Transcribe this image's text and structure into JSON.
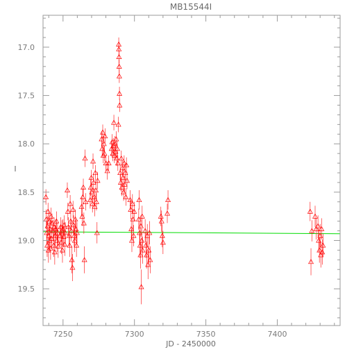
{
  "chart_data": {
    "type": "scatter",
    "title": "MB15544I",
    "xlabel": "JD - 2450000",
    "ylabel": "I",
    "xlim": [
      7236,
      7444
    ],
    "ylim": [
      19.88,
      16.67
    ],
    "x_ticks": [
      7250,
      7300,
      7350,
      7400
    ],
    "y_ticks": [
      17.0,
      17.5,
      18.0,
      18.5,
      19.0,
      19.5
    ],
    "y_tick_labels": [
      "17.0",
      "17.5",
      "18.0",
      "18.5",
      "19.0",
      "19.5"
    ],
    "x_tick_labels": [
      "7250",
      "7300",
      "7350",
      "7400"
    ],
    "grid": false,
    "colors": {
      "points": "#ff0000",
      "baseline": "#00dd00",
      "frame": "#9a9a9a"
    },
    "marker": "triangle-with-errorbar",
    "baseline": {
      "x": [
        7236,
        7444
      ],
      "y": [
        18.91,
        18.93
      ]
    },
    "series": [
      {
        "points": [
          [
            7238.0,
            18.55,
            0.08
          ],
          [
            7238.3,
            18.78,
            0.1
          ],
          [
            7238.6,
            18.92,
            0.12
          ],
          [
            7238.9,
            19.05,
            0.12
          ],
          [
            7239.2,
            18.85,
            0.1
          ],
          [
            7239.5,
            18.7,
            0.09
          ],
          [
            7239.8,
            19.1,
            0.13
          ],
          [
            7240.1,
            18.95,
            0.11
          ],
          [
            7240.4,
            18.8,
            0.1
          ],
          [
            7240.7,
            19.0,
            0.12
          ],
          [
            7241.0,
            18.88,
            0.1
          ],
          [
            7241.3,
            19.08,
            0.12
          ],
          [
            7241.6,
            18.75,
            0.09
          ],
          [
            7242.0,
            18.98,
            0.11
          ],
          [
            7242.3,
            18.82,
            0.1
          ],
          [
            7243.0,
            18.9,
            0.11
          ],
          [
            7243.4,
            19.05,
            0.12
          ],
          [
            7243.8,
            18.86,
            0.1
          ],
          [
            7244.2,
            19.12,
            0.13
          ],
          [
            7244.6,
            18.95,
            0.11
          ],
          [
            7245.0,
            18.88,
            0.1
          ],
          [
            7245.4,
            18.8,
            0.1
          ],
          [
            7245.8,
            19.0,
            0.12
          ],
          [
            7246.2,
            18.92,
            0.11
          ],
          [
            7246.6,
            19.06,
            0.12
          ],
          [
            7248.0,
            18.95,
            0.11
          ],
          [
            7248.4,
            18.86,
            0.1
          ],
          [
            7248.8,
            19.02,
            0.12
          ],
          [
            7249.2,
            18.9,
            0.11
          ],
          [
            7249.6,
            19.1,
            0.13
          ],
          [
            7250.0,
            18.88,
            0.1
          ],
          [
            7250.4,
            18.96,
            0.11
          ],
          [
            7250.8,
            18.84,
            0.1
          ],
          [
            7251.2,
            19.04,
            0.12
          ],
          [
            7251.6,
            18.92,
            0.11
          ],
          [
            7253.0,
            18.48,
            0.08
          ],
          [
            7253.4,
            18.7,
            0.09
          ],
          [
            7253.8,
            18.86,
            0.1
          ],
          [
            7254.2,
            18.95,
            0.11
          ],
          [
            7254.6,
            19.05,
            0.12
          ],
          [
            7255.0,
            18.62,
            0.09
          ],
          [
            7255.4,
            18.8,
            0.1
          ],
          [
            7255.8,
            18.9,
            0.11
          ],
          [
            7256.2,
            19.2,
            0.14
          ],
          [
            7256.6,
            19.28,
            0.14
          ],
          [
            7257.0,
            18.68,
            0.09
          ],
          [
            7257.4,
            18.84,
            0.1
          ],
          [
            7257.8,
            18.95,
            0.11
          ],
          [
            7258.2,
            19.0,
            0.12
          ],
          [
            7258.6,
            18.78,
            0.1
          ],
          [
            7259.0,
            18.88,
            0.1
          ],
          [
            7259.4,
            19.05,
            0.12
          ],
          [
            7259.8,
            18.92,
            0.11
          ],
          [
            7263.0,
            18.65,
            0.1
          ],
          [
            7263.4,
            18.75,
            0.1
          ],
          [
            7263.8,
            18.55,
            0.09
          ],
          [
            7264.2,
            18.45,
            0.09
          ],
          [
            7264.6,
            18.82,
            0.11
          ],
          [
            7265.0,
            19.2,
            0.14
          ],
          [
            7265.4,
            18.15,
            0.09
          ],
          [
            7265.8,
            18.6,
            0.09
          ],
          [
            7269.0,
            18.58,
            0.09
          ],
          [
            7269.4,
            18.45,
            0.09
          ],
          [
            7269.8,
            18.35,
            0.08
          ],
          [
            7270.2,
            18.5,
            0.09
          ],
          [
            7270.6,
            18.62,
            0.09
          ],
          [
            7271.0,
            18.18,
            0.08
          ],
          [
            7271.4,
            18.4,
            0.09
          ],
          [
            7271.8,
            18.55,
            0.09
          ],
          [
            7272.2,
            18.65,
            0.1
          ],
          [
            7272.6,
            18.3,
            0.08
          ],
          [
            7273.0,
            18.48,
            0.09
          ],
          [
            7273.4,
            18.6,
            0.09
          ],
          [
            7273.8,
            18.92,
            0.11
          ],
          [
            7274.2,
            18.38,
            0.09
          ],
          [
            7277.0,
            17.95,
            0.08
          ],
          [
            7277.4,
            18.05,
            0.08
          ],
          [
            7277.8,
            17.88,
            0.08
          ],
          [
            7278.2,
            18.12,
            0.08
          ],
          [
            7278.6,
            18.0,
            0.08
          ],
          [
            7279.0,
            18.1,
            0.08
          ],
          [
            7279.4,
            17.92,
            0.08
          ],
          [
            7280.0,
            18.2,
            0.08
          ],
          [
            7281.0,
            18.28,
            0.09
          ],
          [
            7282.0,
            18.2,
            0.08
          ],
          [
            7284.0,
            18.05,
            0.08
          ],
          [
            7284.4,
            17.98,
            0.08
          ],
          [
            7284.8,
            18.1,
            0.08
          ],
          [
            7285.2,
            18.02,
            0.08
          ],
          [
            7285.6,
            17.78,
            0.08
          ],
          [
            7286.0,
            18.12,
            0.08
          ],
          [
            7286.4,
            18.0,
            0.08
          ],
          [
            7286.8,
            18.08,
            0.08
          ],
          [
            7287.2,
            17.95,
            0.08
          ],
          [
            7287.6,
            18.15,
            0.08
          ],
          [
            7288.0,
            18.05,
            0.08
          ],
          [
            7288.4,
            18.2,
            0.08
          ],
          [
            7288.8,
            17.8,
            0.08
          ],
          [
            7289.0,
            16.97,
            0.07
          ],
          [
            7289.1,
            17.02,
            0.07
          ],
          [
            7289.2,
            17.1,
            0.07
          ],
          [
            7289.3,
            17.2,
            0.07
          ],
          [
            7289.4,
            17.3,
            0.07
          ],
          [
            7289.5,
            17.48,
            0.07
          ],
          [
            7289.6,
            17.6,
            0.07
          ],
          [
            7290.0,
            18.3,
            0.08
          ],
          [
            7290.4,
            18.4,
            0.09
          ],
          [
            7290.8,
            18.15,
            0.08
          ],
          [
            7291.2,
            18.45,
            0.09
          ],
          [
            7291.6,
            18.25,
            0.08
          ],
          [
            7292.0,
            18.35,
            0.09
          ],
          [
            7292.4,
            18.5,
            0.09
          ],
          [
            7292.8,
            18.2,
            0.08
          ],
          [
            7293.2,
            18.42,
            0.09
          ],
          [
            7293.6,
            18.3,
            0.09
          ],
          [
            7294.0,
            18.55,
            0.09
          ],
          [
            7294.4,
            18.22,
            0.08
          ],
          [
            7294.8,
            18.38,
            0.09
          ],
          [
            7297.0,
            18.58,
            0.1
          ],
          [
            7297.4,
            18.68,
            0.1
          ],
          [
            7297.8,
            18.88,
            0.11
          ],
          [
            7298.2,
            19.0,
            0.12
          ],
          [
            7298.6,
            18.62,
            0.1
          ],
          [
            7299.0,
            18.78,
            0.1
          ],
          [
            7299.4,
            18.95,
            0.11
          ],
          [
            7299.8,
            18.7,
            0.1
          ],
          [
            7303.0,
            18.78,
            0.11
          ],
          [
            7303.3,
            18.58,
            0.1
          ],
          [
            7303.6,
            18.92,
            0.12
          ],
          [
            7303.9,
            19.05,
            0.13
          ],
          [
            7304.2,
            19.15,
            0.14
          ],
          [
            7304.5,
            18.85,
            0.11
          ],
          [
            7304.8,
            19.48,
            0.18
          ],
          [
            7305.1,
            19.0,
            0.12
          ],
          [
            7305.4,
            18.75,
            0.11
          ],
          [
            7305.7,
            19.1,
            0.14
          ],
          [
            7307.5,
            18.9,
            0.12
          ],
          [
            7308.0,
            19.05,
            0.13
          ],
          [
            7308.5,
            19.15,
            0.14
          ],
          [
            7309.0,
            18.95,
            0.12
          ],
          [
            7309.5,
            19.25,
            0.15
          ],
          [
            7310.0,
            19.1,
            0.13
          ],
          [
            7310.5,
            18.92,
            0.12
          ],
          [
            7311.0,
            19.2,
            0.14
          ],
          [
            7318.5,
            18.75,
            0.1
          ],
          [
            7319.0,
            18.8,
            0.11
          ],
          [
            7319.5,
            18.95,
            0.12
          ],
          [
            7320.0,
            19.02,
            0.12
          ],
          [
            7323.0,
            18.72,
            0.1
          ],
          [
            7323.5,
            18.58,
            0.1
          ],
          [
            7423.0,
            18.7,
            0.1
          ],
          [
            7423.6,
            19.22,
            0.14
          ],
          [
            7424.2,
            18.9,
            0.11
          ],
          [
            7426.5,
            18.75,
            0.11
          ],
          [
            7427.2,
            18.88,
            0.11
          ],
          [
            7428.5,
            18.85,
            0.11
          ],
          [
            7429.0,
            19.0,
            0.12
          ],
          [
            7429.5,
            19.1,
            0.13
          ],
          [
            7430.0,
            18.95,
            0.12
          ],
          [
            7430.5,
            19.15,
            0.13
          ],
          [
            7431.0,
            18.88,
            0.11
          ],
          [
            7431.5,
            19.12,
            0.13
          ],
          [
            7432.0,
            19.05,
            0.12
          ]
        ]
      }
    ]
  }
}
